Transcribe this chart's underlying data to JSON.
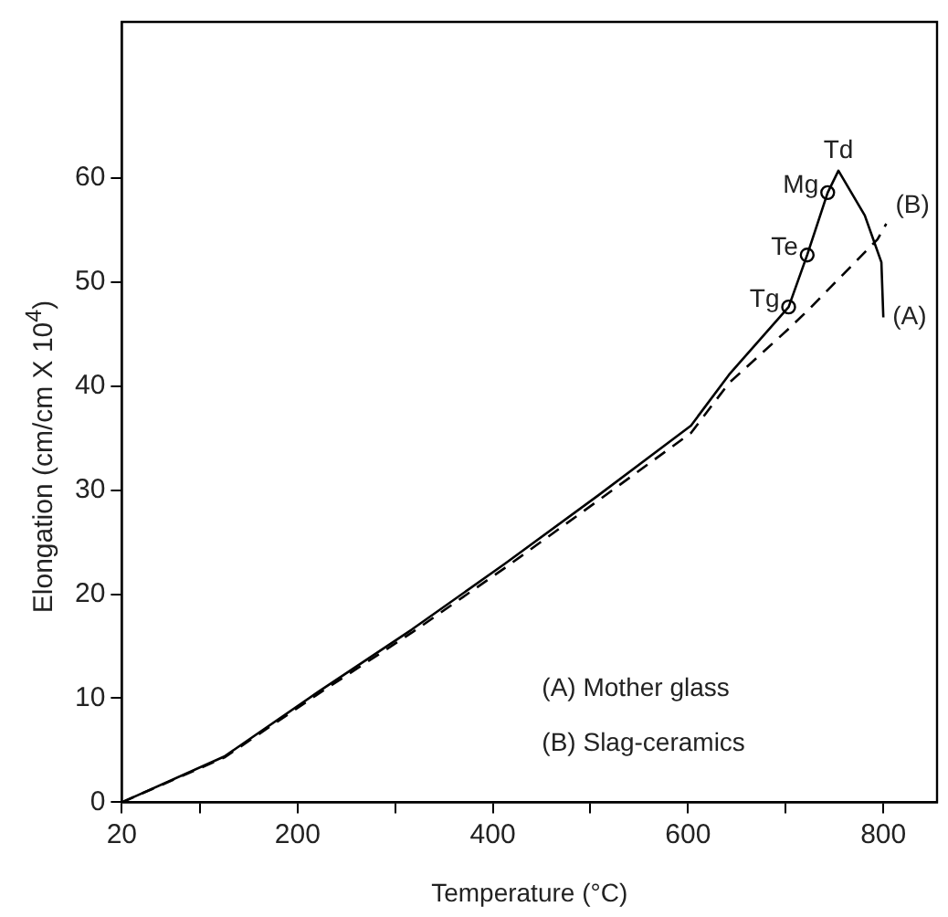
{
  "chart_data": {
    "type": "line",
    "xlabel": "Temperature (°C)",
    "ylabel": "Elongation (cm/cm X 10$^{4}$)",
    "xlim": [
      20,
      855
    ],
    "ylim": [
      0,
      75
    ],
    "xticks": [
      20,
      {
        "value": 100,
        "label": null
      },
      200,
      {
        "value": 300,
        "label": null
      },
      400,
      {
        "value": 500,
        "label": null
      },
      600,
      {
        "value": 700,
        "label": null
      },
      800
    ],
    "yticks": [
      0,
      10,
      20,
      30,
      40,
      50,
      60
    ],
    "grid": false,
    "legend": false,
    "marker": "none",
    "series": [
      {
        "name": "(A)",
        "color": "#000000",
        "line_style": "solid",
        "x": [
          20,
          125,
          221,
          317,
          412,
          508,
          603,
          642,
          703,
          722,
          743,
          754,
          781,
          798,
          800
        ],
        "values": [
          0,
          4.4,
          10.6,
          16.6,
          22.9,
          29.5,
          36.2,
          41.1,
          47.6,
          52.6,
          58.6,
          60.7,
          56.4,
          51.9,
          46.6
        ]
      },
      {
        "name": "(B)",
        "color": "#000000",
        "line_style": "dashed",
        "x": [
          20,
          125,
          221,
          317,
          412,
          508,
          603,
          642,
          703,
          724,
          794,
          803
        ],
        "values": [
          0,
          4.3,
          10.4,
          16.3,
          22.5,
          29,
          35.5,
          40.3,
          45.5,
          47.4,
          54.1,
          55.6
        ]
      },
      {
        "type": "scatter",
        "marker": "circle",
        "color": "#000000",
        "x": [
          703,
          722,
          743
        ],
        "values": [
          47.6,
          52.6,
          58.6
        ]
      }
    ],
    "annotations": [
      {
        "text": "Tg",
        "x": 703,
        "y": 47.6
      },
      {
        "text": "Te",
        "x": 722,
        "y": 52.6
      },
      {
        "text": "Mg",
        "x": 743,
        "y": 58.6
      },
      {
        "text": "Td",
        "x": 754,
        "y": 60.7
      },
      "(A) Mother glass",
      "(B) Slag-ceramics"
    ]
  }
}
